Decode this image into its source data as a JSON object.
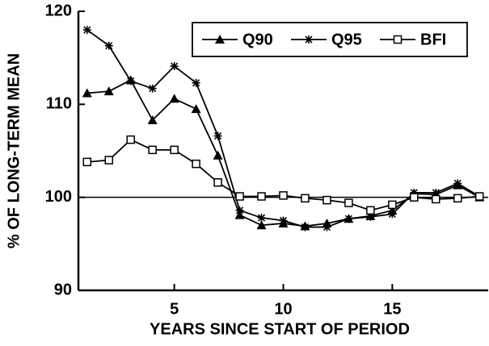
{
  "chart_data": {
    "type": "line",
    "xlabel": "YEARS SINCE START OF PERIOD",
    "ylabel": "% OF LONG-TERM MEAN",
    "x": [
      1,
      2,
      3,
      4,
      5,
      6,
      7,
      8,
      9,
      10,
      11,
      12,
      13,
      14,
      15,
      16,
      17,
      18,
      19
    ],
    "series": [
      {
        "name": "Q90",
        "color": "#000000",
        "marker": "triangle",
        "values": [
          111.2,
          111.4,
          112.6,
          108.3,
          110.6,
          109.5,
          104.5,
          98.1,
          97.0,
          97.2,
          96.9,
          97.2,
          97.7,
          98.0,
          98.6,
          100.4,
          100.3,
          101.3,
          100.0
        ]
      },
      {
        "name": "Q95",
        "color": "#000000",
        "marker": "asterisk",
        "values": [
          118.0,
          116.3,
          112.5,
          111.7,
          114.1,
          112.3,
          106.6,
          98.6,
          97.8,
          97.5,
          96.8,
          96.8,
          97.7,
          97.9,
          98.2,
          100.5,
          100.5,
          101.5,
          100.1
        ]
      },
      {
        "name": "BFI",
        "color": "#000000",
        "marker": "square",
        "values": [
          103.8,
          104.0,
          106.2,
          105.1,
          105.1,
          103.6,
          101.6,
          100.1,
          100.1,
          100.2,
          99.9,
          99.7,
          99.4,
          98.6,
          99.2,
          100.0,
          99.8,
          99.9,
          100.1
        ]
      }
    ],
    "reference_line": 100,
    "xlim": [
      0.6,
      19.4
    ],
    "xticks": [
      5,
      10,
      15
    ],
    "ylim": [
      90,
      120
    ],
    "yticks": [
      90,
      100,
      110,
      120
    ],
    "legend": "top-right"
  }
}
